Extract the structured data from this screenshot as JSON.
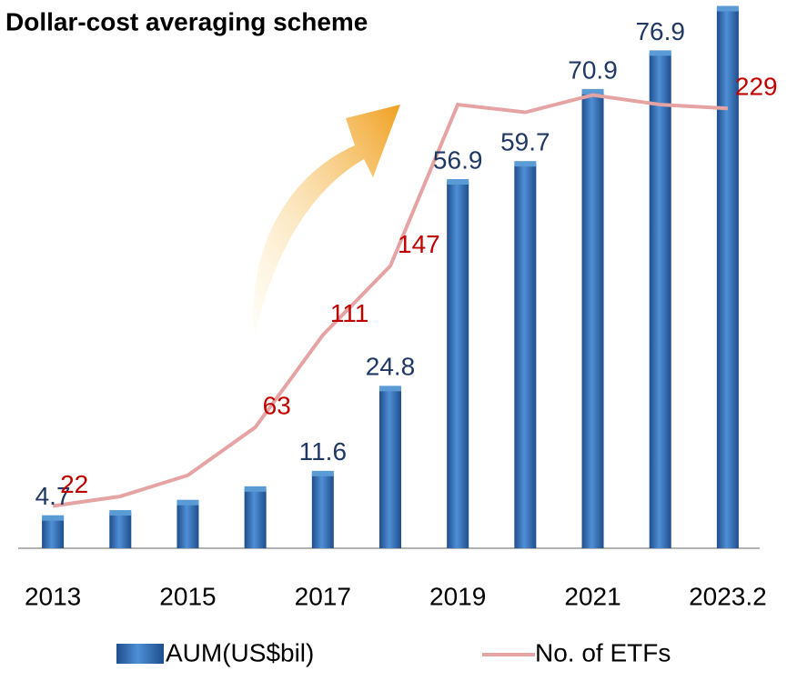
{
  "chart_data": {
    "type": "bar-line",
    "title": "Dollar-cost averaging scheme",
    "categories": [
      "2013",
      null,
      "2015",
      null,
      "2017",
      null,
      "2019",
      null,
      "2021",
      null,
      "2023.2"
    ],
    "series": [
      {
        "name": "AUM(US$bil)",
        "type": "bar",
        "color": "#2e75b6",
        "label_color": "#1f3864",
        "values": [
          4.7,
          5.5,
          7.1,
          9.2,
          11.6,
          24.8,
          56.9,
          59.7,
          70.9,
          76.9,
          83.8
        ],
        "value_labels": [
          "4.7",
          null,
          null,
          null,
          "11.6",
          "24.8",
          "56.9",
          "59.7",
          "70.9",
          "76.9",
          null
        ]
      },
      {
        "name": "No. of ETFs",
        "type": "line",
        "axis": "y2",
        "color": "#e6a3a3",
        "label_color": "#c00000",
        "values": [
          22,
          27,
          38,
          63,
          111,
          147,
          231,
          227,
          236,
          231,
          229
        ],
        "value_labels": [
          "22",
          null,
          null,
          "63",
          "111",
          "147",
          null,
          null,
          null,
          null,
          "229"
        ]
      }
    ],
    "ylim": [
      0,
      85
    ],
    "y2lim": [
      0,
      285
    ],
    "grid": false
  }
}
